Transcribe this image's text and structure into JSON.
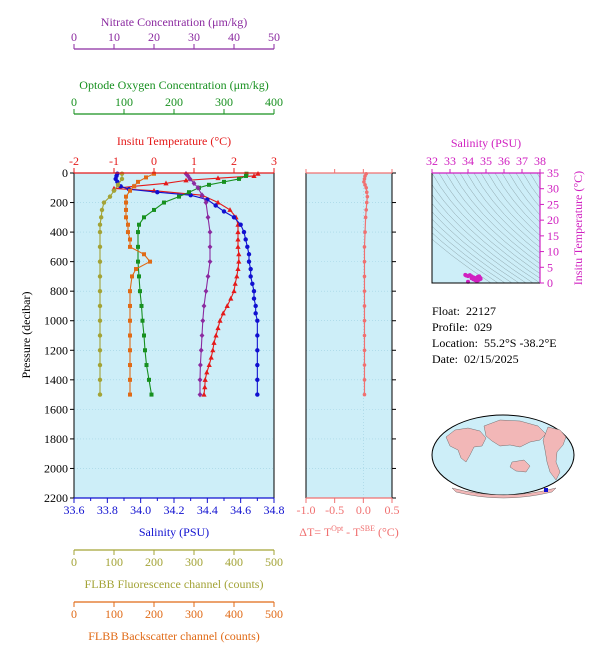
{
  "colors": {
    "nitrate": "#8b2aa0",
    "oxygen": "#17901f",
    "temperature": "#e41a1a",
    "salinity": "#1010d0",
    "fluorescence": "#a3a336",
    "backscatter": "#e06a16",
    "delta": "#f07070",
    "panel_bg": "#cdeef8",
    "magenta": "#d020c0",
    "ts_line": "#1ab8c0",
    "axis": "#000000"
  },
  "info": {
    "float_label": "Float:",
    "float_value": "22127",
    "profile_label": "Profile:",
    "profile_value": "029",
    "location_label": "Location:",
    "location_value": "55.2°S  -38.2°E",
    "date_label": "Date:",
    "date_value": "02/15/2025"
  },
  "chart_data": [
    {
      "type": "line",
      "name": "main-profile",
      "ylabel": "Pressure (decibar)",
      "ylim": [
        2200,
        0
      ],
      "yticks": [
        0,
        200,
        400,
        600,
        800,
        1000,
        1200,
        1400,
        1600,
        1800,
        2000,
        2200
      ],
      "axes": {
        "nitrate": {
          "label": "Nitrate Concentration (μm/kg)",
          "range": [
            0,
            50
          ],
          "ticks": [
            0,
            10,
            20,
            30,
            40,
            50
          ]
        },
        "oxygen": {
          "label": "Optode Oxygen Concentration (μm/kg)",
          "range": [
            0,
            400
          ],
          "ticks": [
            0,
            100,
            200,
            300,
            400
          ]
        },
        "temperature": {
          "label": "Insitu Temperature (°C)",
          "range": [
            -2,
            3
          ],
          "ticks": [
            -2,
            -1,
            0,
            1,
            2,
            3
          ]
        },
        "salinity": {
          "label": "Salinity (PSU)",
          "range": [
            33.6,
            34.8
          ],
          "ticks": [
            "33.6",
            "33.8",
            "34.0",
            "34.2",
            "34.4",
            "34.6",
            "34.8"
          ]
        },
        "fluorescence": {
          "label": "FLBB Fluorescence channel (counts)",
          "range": [
            0,
            500
          ],
          "ticks": [
            0,
            100,
            200,
            300,
            400,
            500
          ]
        },
        "backscatter": {
          "label": "FLBB Backscatter channel (counts)",
          "range": [
            0,
            500
          ],
          "ticks": [
            0,
            100,
            200,
            300,
            400,
            500
          ]
        }
      },
      "series": [
        {
          "key": "temperature",
          "marker": "triangle",
          "points": [
            [
              2.6,
              5
            ],
            [
              2.5,
              20
            ],
            [
              1.6,
              35
            ],
            [
              0.8,
              50
            ],
            [
              0.3,
              70
            ],
            [
              -0.5,
              90
            ],
            [
              -1.0,
              105
            ],
            [
              0.0,
              120
            ],
            [
              1.2,
              150
            ],
            [
              1.6,
              200
            ],
            [
              1.9,
              250
            ],
            [
              2.05,
              300
            ],
            [
              2.1,
              350
            ],
            [
              2.1,
              400
            ],
            [
              2.1,
              450
            ],
            [
              2.1,
              500
            ],
            [
              2.12,
              550
            ],
            [
              2.12,
              600
            ],
            [
              2.1,
              650
            ],
            [
              2.07,
              700
            ],
            [
              2.03,
              750
            ],
            [
              2.0,
              800
            ],
            [
              1.92,
              850
            ],
            [
              1.83,
              900
            ],
            [
              1.73,
              950
            ],
            [
              1.65,
              1000
            ],
            [
              1.6,
              1050
            ],
            [
              1.55,
              1100
            ],
            [
              1.5,
              1150
            ],
            [
              1.47,
              1200
            ],
            [
              1.43,
              1250
            ],
            [
              1.38,
              1300
            ],
            [
              1.32,
              1350
            ],
            [
              1.28,
              1400
            ],
            [
              1.27,
              1450
            ],
            [
              1.25,
              1500
            ]
          ]
        },
        {
          "key": "salinity",
          "marker": "circle",
          "points": [
            [
              33.86,
              5
            ],
            [
              33.855,
              20
            ],
            [
              33.85,
              40
            ],
            [
              33.86,
              60
            ],
            [
              33.88,
              90
            ],
            [
              33.93,
              110
            ],
            [
              34.1,
              130
            ],
            [
              34.3,
              150
            ],
            [
              34.4,
              180
            ],
            [
              34.45,
              220
            ],
            [
              34.5,
              260
            ],
            [
              34.56,
              300
            ],
            [
              34.6,
              350
            ],
            [
              34.62,
              400
            ],
            [
              34.63,
              450
            ],
            [
              34.64,
              500
            ],
            [
              34.65,
              550
            ],
            [
              34.65,
              600
            ],
            [
              34.66,
              650
            ],
            [
              34.66,
              700
            ],
            [
              34.67,
              750
            ],
            [
              34.68,
              800
            ],
            [
              34.68,
              850
            ],
            [
              34.69,
              900
            ],
            [
              34.69,
              950
            ],
            [
              34.7,
              1000
            ],
            [
              34.7,
              1100
            ],
            [
              34.7,
              1200
            ],
            [
              34.7,
              1300
            ],
            [
              34.7,
              1400
            ],
            [
              34.7,
              1500
            ]
          ]
        },
        {
          "key": "oxygen",
          "marker": "square",
          "points": [
            [
              345,
              5
            ],
            [
              344,
              20
            ],
            [
              330,
              40
            ],
            [
              300,
              60
            ],
            [
              270,
              80
            ],
            [
              250,
              100
            ],
            [
              230,
              130
            ],
            [
              210,
              160
            ],
            [
              180,
              200
            ],
            [
              160,
              250
            ],
            [
              140,
              300
            ],
            [
              130,
              350
            ],
            [
              128,
              400
            ],
            [
              128,
              500
            ],
            [
              128,
              600
            ],
            [
              130,
              700
            ],
            [
              132,
              800
            ],
            [
              135,
              900
            ],
            [
              137,
              1000
            ],
            [
              140,
              1100
            ],
            [
              142,
              1200
            ],
            [
              145,
              1300
            ],
            [
              150,
              1400
            ],
            [
              155,
              1500
            ]
          ]
        },
        {
          "key": "nitrate",
          "marker": "diamond",
          "points": [
            [
              28,
              5
            ],
            [
              28.5,
              20
            ],
            [
              29,
              40
            ],
            [
              30,
              70
            ],
            [
              31,
              100
            ],
            [
              32,
              150
            ],
            [
              33,
              200
            ],
            [
              33.5,
              300
            ],
            [
              34,
              400
            ],
            [
              34,
              500
            ],
            [
              34,
              600
            ],
            [
              33.5,
              700
            ],
            [
              33,
              800
            ],
            [
              32.5,
              900
            ],
            [
              32.2,
              1000
            ],
            [
              32,
              1100
            ],
            [
              31.8,
              1200
            ],
            [
              31.6,
              1300
            ],
            [
              31.5,
              1400
            ],
            [
              31.5,
              1500
            ]
          ]
        },
        {
          "key": "fluorescence",
          "marker": "circle",
          "points": [
            [
              120,
              5
            ],
            [
              120,
              40
            ],
            [
              110,
              80
            ],
            [
              100,
              120
            ],
            [
              90,
              160
            ],
            [
              75,
              200
            ],
            [
              70,
              250
            ],
            [
              68,
              300
            ],
            [
              65,
              350
            ],
            [
              65,
              400
            ],
            [
              65,
              500
            ],
            [
              65,
              600
            ],
            [
              65,
              700
            ],
            [
              65,
              800
            ],
            [
              65,
              900
            ],
            [
              65,
              1000
            ],
            [
              65,
              1100
            ],
            [
              65,
              1200
            ],
            [
              65,
              1300
            ],
            [
              65,
              1400
            ],
            [
              65,
              1500
            ]
          ]
        },
        {
          "key": "backscatter",
          "marker": "square",
          "points": [
            [
              200,
              5
            ],
            [
              180,
              30
            ],
            [
              160,
              60
            ],
            [
              150,
              90
            ],
            [
              140,
              120
            ],
            [
              130,
              160
            ],
            [
              130,
              200
            ],
            [
              130,
              250
            ],
            [
              130,
              300
            ],
            [
              135,
              350
            ],
            [
              135,
              400
            ],
            [
              140,
              450
            ],
            [
              140,
              500
            ],
            [
              175,
              550
            ],
            [
              190,
              600
            ],
            [
              155,
              650
            ],
            [
              145,
              700
            ],
            [
              140,
              800
            ],
            [
              140,
              900
            ],
            [
              140,
              1000
            ],
            [
              140,
              1100
            ],
            [
              140,
              1200
            ],
            [
              140,
              1300
            ],
            [
              140,
              1400
            ],
            [
              140,
              1500
            ]
          ]
        }
      ]
    },
    {
      "type": "line",
      "name": "delta-t",
      "xlabel": "ΔT= T^Opt - T^SBE (°C)",
      "xlabel_main": "ΔT= T",
      "xlabel_sup1": "Opt",
      "xlabel_mid": " - T",
      "xlabel_sup2": "SBE",
      "xlabel_end": " (°C)",
      "xlim": [
        -1.0,
        0.5
      ],
      "xticks": [
        "-1.0",
        "-0.5",
        "0.0",
        "0.5"
      ],
      "ylim": [
        2200,
        0
      ],
      "points": [
        [
          0.05,
          5
        ],
        [
          0.03,
          20
        ],
        [
          0.02,
          40
        ],
        [
          0.01,
          60
        ],
        [
          0.03,
          80
        ],
        [
          0.05,
          100
        ],
        [
          0.06,
          130
        ],
        [
          0.07,
          160
        ],
        [
          0.06,
          200
        ],
        [
          0.05,
          250
        ],
        [
          0.04,
          300
        ],
        [
          0.03,
          400
        ],
        [
          0.02,
          500
        ],
        [
          0.02,
          600
        ],
        [
          0.02,
          700
        ],
        [
          0.02,
          800
        ],
        [
          0.02,
          900
        ],
        [
          0.02,
          1000
        ],
        [
          0.02,
          1100
        ],
        [
          0.02,
          1200
        ],
        [
          0.02,
          1300
        ],
        [
          0.02,
          1400
        ],
        [
          0.02,
          1500
        ]
      ]
    },
    {
      "type": "scatter",
      "name": "ts-diagram",
      "xlabel": "Salinity (PSU)",
      "ylabel": "Insitu Temperature (°C)",
      "xlim": [
        32,
        38
      ],
      "ylim": [
        0,
        35
      ],
      "xticks": [
        32,
        33,
        34,
        35,
        36,
        37,
        38
      ],
      "yticks": [
        0,
        5,
        10,
        15,
        20,
        25,
        30,
        35
      ],
      "points": [
        [
          33.85,
          2.6
        ],
        [
          33.9,
          2.4
        ],
        [
          34.0,
          2.2
        ],
        [
          34.1,
          2.5
        ],
        [
          34.2,
          2.1
        ],
        [
          34.3,
          1.8
        ],
        [
          34.45,
          1.6
        ],
        [
          34.55,
          2.0
        ],
        [
          34.62,
          2.1
        ],
        [
          34.68,
          1.6
        ],
        [
          34.7,
          1.3
        ],
        [
          34.6,
          1.0
        ],
        [
          34.5,
          0.6
        ],
        [
          34.4,
          0.9
        ],
        [
          34.3,
          1.2
        ],
        [
          34.2,
          1.5
        ],
        [
          34.0,
          0.4
        ]
      ]
    }
  ]
}
